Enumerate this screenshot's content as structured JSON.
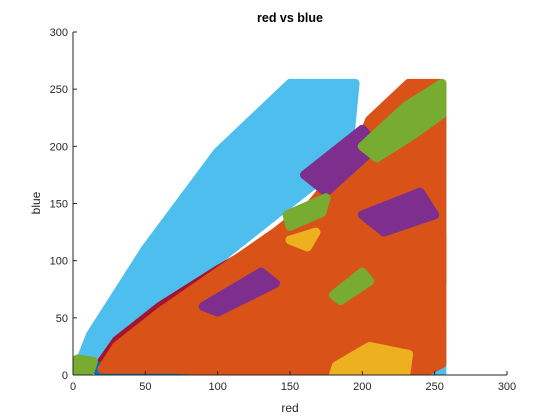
{
  "chart_data": {
    "type": "scatter",
    "title": "red vs blue",
    "xlabel": "red",
    "ylabel": "blue",
    "xlim": [
      0,
      300
    ],
    "ylim": [
      0,
      300
    ],
    "xticks": [
      0,
      50,
      100,
      150,
      200,
      250,
      300
    ],
    "yticks": [
      0,
      50,
      100,
      150,
      200,
      250,
      300
    ],
    "grid": false,
    "colors": {
      "blue": "#0072bd",
      "orange": "#d95319",
      "yellow": "#edb120",
      "purple": "#7e2f8e",
      "green": "#77ac30",
      "lightblue": "#4dbeee",
      "maroon": "#a2142f"
    },
    "series": [
      {
        "color": "lightblue",
        "regions": [
          [
            [
              5,
              5
            ],
            [
              30,
              30
            ],
            [
              80,
              80
            ],
            [
              140,
              140
            ],
            [
              190,
              190
            ],
            [
              195,
              255
            ],
            [
              150,
              255
            ],
            [
              100,
              195
            ],
            [
              50,
              110
            ],
            [
              12,
              35
            ],
            [
              5,
              12
            ]
          ],
          [
            [
              205,
              135
            ],
            [
              250,
              175
            ],
            [
              255,
              225
            ],
            [
              255,
              100
            ],
            [
              225,
              110
            ]
          ],
          [
            [
              90,
              0
            ],
            [
              255,
              0
            ],
            [
              255,
              40
            ],
            [
              200,
              30
            ],
            [
              140,
              20
            ]
          ]
        ]
      },
      {
        "color": "maroon",
        "regions": [
          [
            [
              20,
              12
            ],
            [
              60,
              30
            ],
            [
              110,
              55
            ],
            [
              160,
              85
            ],
            [
              190,
              110
            ],
            [
              195,
              145
            ],
            [
              150,
              128
            ],
            [
              100,
              92
            ],
            [
              60,
              60
            ],
            [
              30,
              30
            ]
          ]
        ]
      },
      {
        "color": "blue",
        "regions": [
          [
            [
              15,
              5
            ],
            [
              40,
              20
            ],
            [
              80,
              42
            ],
            [
              120,
              55
            ],
            [
              155,
              60
            ],
            [
              170,
              35
            ],
            [
              150,
              12
            ],
            [
              100,
              5
            ],
            [
              50,
              2
            ],
            [
              20,
              2
            ]
          ],
          [
            [
              115,
              40
            ],
            [
              165,
              75
            ],
            [
              175,
              45
            ],
            [
              140,
              30
            ]
          ]
        ]
      },
      {
        "color": "orange",
        "regions": [
          [
            [
              20,
              5
            ],
            [
              70,
              5
            ],
            [
              130,
              2
            ],
            [
              180,
              0
            ],
            [
              240,
              0
            ],
            [
              255,
              10
            ],
            [
              255,
              80
            ],
            [
              255,
              180
            ],
            [
              255,
              255
            ],
            [
              232,
              255
            ],
            [
              205,
              223
            ],
            [
              195,
              190
            ],
            [
              178,
              170
            ],
            [
              165,
              150
            ],
            [
              140,
              125
            ],
            [
              100,
              90
            ],
            [
              60,
              55
            ],
            [
              30,
              25
            ]
          ],
          [
            [
              160,
              30
            ],
            [
              200,
              70
            ],
            [
              255,
              120
            ],
            [
              255,
              80
            ],
            [
              210,
              45
            ]
          ],
          [
            [
              80,
              15
            ],
            [
              120,
              45
            ],
            [
              150,
              65
            ],
            [
              140,
              35
            ],
            [
              100,
              18
            ]
          ]
        ]
      },
      {
        "color": "purple",
        "regions": [
          [
            [
              160,
              175
            ],
            [
              200,
              215
            ],
            [
              210,
              200
            ],
            [
              175,
              160
            ]
          ],
          [
            [
              200,
              140
            ],
            [
              240,
              160
            ],
            [
              250,
              140
            ],
            [
              215,
              125
            ]
          ],
          [
            [
              90,
              60
            ],
            [
              130,
              90
            ],
            [
              140,
              80
            ],
            [
              100,
              55
            ]
          ]
        ]
      },
      {
        "color": "green",
        "regions": [
          [
            [
              200,
              200
            ],
            [
              230,
              235
            ],
            [
              255,
              255
            ],
            [
              255,
              228
            ],
            [
              235,
              210
            ],
            [
              210,
              190
            ]
          ],
          [
            [
              148,
              140
            ],
            [
              175,
              155
            ],
            [
              172,
              142
            ],
            [
              150,
              130
            ]
          ],
          [
            [
              2,
              2
            ],
            [
              12,
              4
            ],
            [
              14,
              12
            ],
            [
              3,
              14
            ]
          ],
          [
            [
              180,
              70
            ],
            [
              200,
              90
            ],
            [
              205,
              82
            ],
            [
              185,
              65
            ]
          ]
        ]
      },
      {
        "color": "yellow",
        "regions": [
          [
            [
              180,
              0
            ],
            [
              230,
              0
            ],
            [
              232,
              18
            ],
            [
              205,
              25
            ],
            [
              182,
              8
            ]
          ],
          [
            [
              150,
              118
            ],
            [
              168,
              125
            ],
            [
              162,
              112
            ]
          ]
        ]
      }
    ]
  }
}
